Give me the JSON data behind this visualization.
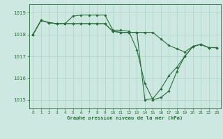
{
  "title": "Graphe pression niveau de la mer (hPa)",
  "background_color": "#cce8e0",
  "grid_color": "#b0d4cc",
  "line_color": "#2d6e3e",
  "xlim": [
    -0.5,
    23.5
  ],
  "ylim": [
    1014.6,
    1019.4
  ],
  "yticks": [
    1015,
    1016,
    1017,
    1018,
    1019
  ],
  "xticks": [
    0,
    1,
    2,
    3,
    4,
    5,
    6,
    7,
    8,
    9,
    10,
    11,
    12,
    13,
    14,
    15,
    16,
    17,
    18,
    19,
    20,
    21,
    22,
    23
  ],
  "series": [
    [
      1018.0,
      1018.65,
      1018.55,
      1018.5,
      1018.5,
      1018.85,
      1018.9,
      1018.9,
      1018.9,
      1018.9,
      1018.2,
      1018.2,
      1018.15,
      1017.3,
      1015.75,
      1015.0,
      1015.1,
      1015.4,
      1016.3,
      1017.0,
      1017.45,
      1017.55,
      1017.4,
      1017.4
    ],
    [
      1018.0,
      1018.65,
      1018.55,
      1018.5,
      1018.5,
      1018.5,
      1018.5,
      1018.5,
      1018.5,
      1018.5,
      1018.15,
      1018.1,
      1018.1,
      1018.1,
      1018.1,
      1018.1,
      1017.8,
      1017.5,
      1017.35,
      1017.2,
      1017.45,
      1017.55,
      1017.4,
      1017.4
    ],
    [
      1018.0,
      1018.65,
      1018.55,
      1018.5,
      1018.5,
      1018.5,
      1018.5,
      1018.5,
      1018.5,
      1018.5,
      1018.15,
      1018.1,
      1018.1,
      1018.1,
      1015.0,
      1015.05,
      1015.5,
      1016.1,
      1016.5,
      1017.0,
      1017.45,
      1017.55,
      1017.4,
      1017.4
    ]
  ]
}
